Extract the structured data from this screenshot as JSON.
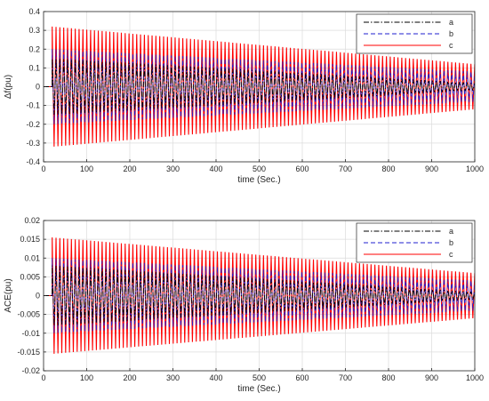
{
  "colors": {
    "a": "#000000",
    "b": "#1f1fcf",
    "c": "#ff0000",
    "grid": "#dcdcdc",
    "axis": "#262626"
  },
  "chart_data": [
    {
      "type": "line",
      "ylabel": "Δf(pu)",
      "xlabel": "time (Sec.)",
      "xlim": [
        0,
        1000
      ],
      "ylim": [
        -0.4,
        0.4
      ],
      "xticks": [
        "0",
        "100",
        "200",
        "300",
        "400",
        "500",
        "600",
        "700",
        "800",
        "900",
        "1000"
      ],
      "yticks": [
        "0.4",
        "0.3",
        "0.2",
        "0.1",
        "0",
        "-0.1",
        "-0.2",
        "-0.3",
        "-0.4"
      ],
      "grid": true,
      "legend_position": "top-right",
      "oscillation_start_x": 20,
      "cycles": 110,
      "series": [
        {
          "name": "a",
          "style": "dash-dot",
          "amplitude_start": 0.15,
          "amplitude_end": 0.02
        },
        {
          "name": "b",
          "style": "dashed",
          "amplitude_start": 0.2,
          "amplitude_end": 0.08
        },
        {
          "name": "c",
          "style": "solid",
          "amplitude_start": 0.32,
          "amplitude_end": 0.12
        }
      ]
    },
    {
      "type": "line",
      "ylabel": "ACE(pu)",
      "xlabel": "time (Sec.)",
      "xlim": [
        0,
        1000
      ],
      "ylim": [
        -0.02,
        0.02
      ],
      "xticks": [
        "0",
        "100",
        "200",
        "300",
        "400",
        "500",
        "600",
        "700",
        "800",
        "900",
        "1000"
      ],
      "yticks": [
        "0.02",
        "0.015",
        "0.01",
        "0.005",
        "0",
        "-0.005",
        "-0.01",
        "-0.015",
        "-0.02"
      ],
      "grid": true,
      "legend_position": "top-right",
      "oscillation_start_x": 20,
      "cycles": 110,
      "series": [
        {
          "name": "a",
          "style": "dash-dot",
          "amplitude_start": 0.008,
          "amplitude_end": 0.001
        },
        {
          "name": "b",
          "style": "dashed",
          "amplitude_start": 0.01,
          "amplitude_end": 0.004
        },
        {
          "name": "c",
          "style": "solid",
          "amplitude_start": 0.0155,
          "amplitude_end": 0.006
        }
      ]
    }
  ]
}
